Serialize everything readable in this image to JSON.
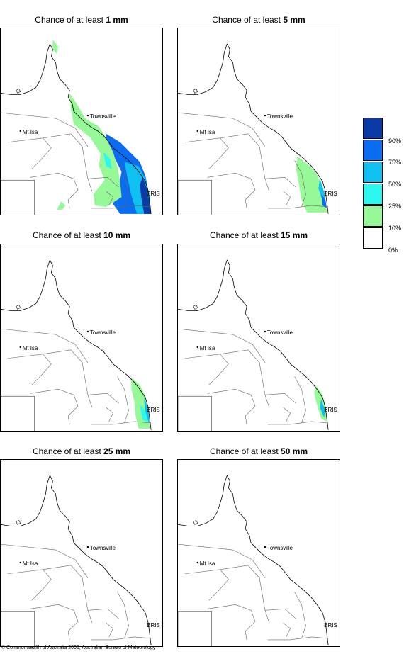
{
  "panels": [
    {
      "prefix": "Chance of at least ",
      "amount": "1 mm"
    },
    {
      "prefix": "Chance of at least ",
      "amount": "5 mm"
    },
    {
      "prefix": "Chance of at least ",
      "amount": "10 mm"
    },
    {
      "prefix": "Chance of at least ",
      "amount": "15 mm"
    },
    {
      "prefix": "Chance of at least ",
      "amount": "25 mm"
    },
    {
      "prefix": "Chance of at least ",
      "amount": "50 mm"
    }
  ],
  "places": {
    "townsville": "Townsville",
    "mt_isa": "Mt Isa",
    "bris": "BRIS"
  },
  "legend": {
    "labels": [
      "90%",
      "75%",
      "50%",
      "25%",
      "10%",
      "0%"
    ],
    "colors": [
      "#0a3aa6",
      "#0a6cf0",
      "#10c0f0",
      "#2cf8f0",
      "#96f896",
      "#ffffff"
    ]
  },
  "copyright": "© Commonwealth of Australia 2006, Australian Bureau of Meteorology"
}
